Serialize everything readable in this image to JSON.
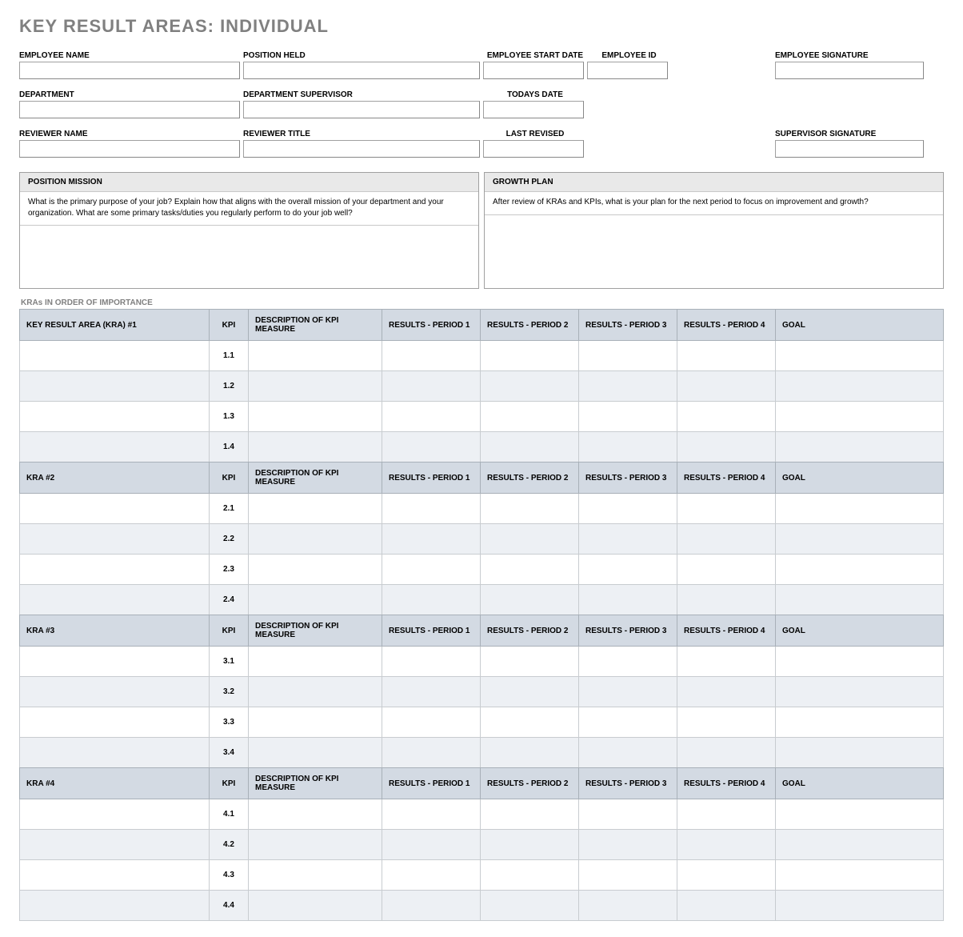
{
  "title": "KEY RESULT AREAS: INDIVIDUAL",
  "info_fields": {
    "employee_name": "EMPLOYEE NAME",
    "position_held": "POSITION HELD",
    "start_date": "EMPLOYEE START DATE",
    "employee_id": "EMPLOYEE ID",
    "employee_signature": "EMPLOYEE SIGNATURE",
    "department": "DEPARTMENT",
    "dept_supervisor": "DEPARTMENT SUPERVISOR",
    "todays_date": "TODAYS DATE",
    "reviewer_name": "REVIEWER NAME",
    "reviewer_title": "REVIEWER TITLE",
    "last_revised": "LAST REVISED",
    "supervisor_signature": "SUPERVISOR SIGNATURE"
  },
  "position_mission": {
    "header": "POSITION MISSION",
    "prompt": "What is the primary purpose of your job?  Explain how that aligns with the overall mission of your department and your organization.  What are some primary tasks/duties you regularly perform to do your job well?"
  },
  "growth_plan": {
    "header": "GROWTH PLAN",
    "prompt": "After review of KRAs and KPIs, what is your plan for the next period to focus on improvement and growth?"
  },
  "section_label": "KRAs IN ORDER OF IMPORTANCE",
  "columns": {
    "kpi": "KPI",
    "desc": "DESCRIPTION OF KPI MEASURE",
    "p1": "RESULTS - PERIOD 1",
    "p2": "RESULTS - PERIOD 2",
    "p3": "RESULTS - PERIOD 3",
    "p4": "RESULTS - PERIOD 4",
    "goal": "GOAL"
  },
  "kra_groups": [
    {
      "title": "KEY RESULT AREA (KRA) #1",
      "kpis": [
        "1.1",
        "1.2",
        "1.3",
        "1.4"
      ]
    },
    {
      "title": "KRA #2",
      "kpis": [
        "2.1",
        "2.2",
        "2.3",
        "2.4"
      ]
    },
    {
      "title": "KRA #3",
      "kpis": [
        "3.1",
        "3.2",
        "3.3",
        "3.4"
      ]
    },
    {
      "title": "KRA #4",
      "kpis": [
        "4.1",
        "4.2",
        "4.3",
        "4.4"
      ]
    }
  ],
  "colors": {
    "page_bg": "#ffffff",
    "title_color": "#808080",
    "header_cell_bg": "#d3dae3",
    "row_white": "#ffffff",
    "row_alt": "#edf0f4",
    "panel_header_bg": "#e9e9e9",
    "border": "#a0a0a0"
  }
}
